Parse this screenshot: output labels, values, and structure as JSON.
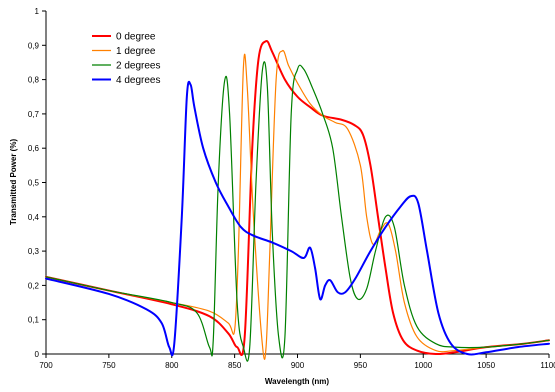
{
  "chart_data": {
    "type": "line",
    "title": "",
    "xlabel": "Wavelength (nm)",
    "ylabel": "Transmitted Power (%)",
    "xlim": [
      700,
      1100
    ],
    "ylim": [
      0,
      1
    ],
    "x_ticks": [
      700,
      750,
      800,
      850,
      900,
      950,
      1000,
      1050,
      1100
    ],
    "x_tick_labels": [
      "700",
      "750",
      "800",
      "850",
      "900",
      "950",
      "1000",
      "1050",
      "1100"
    ],
    "y_ticks": [
      0,
      0.1,
      0.2,
      0.3,
      0.4,
      0.5,
      0.6,
      0.7,
      0.8,
      0.9,
      1
    ],
    "y_tick_labels": [
      "0",
      "0,1",
      "0,2",
      "0,3",
      "0,4",
      "0,5",
      "0,6",
      "0,7",
      "0,8",
      "0,9",
      "1"
    ],
    "grid": false,
    "legend_position": "top-left",
    "series": [
      {
        "name": "0 degree",
        "color": "#ff0000",
        "width": 2,
        "points": [
          [
            700,
            0.225
          ],
          [
            750,
            0.185
          ],
          [
            800,
            0.145
          ],
          [
            830,
            0.11
          ],
          [
            845,
            0.06
          ],
          [
            852,
            0.02
          ],
          [
            858,
            0.05
          ],
          [
            864,
            0.6
          ],
          [
            869,
            0.86
          ],
          [
            875,
            0.912
          ],
          [
            880,
            0.88
          ],
          [
            890,
            0.8
          ],
          [
            900,
            0.75
          ],
          [
            910,
            0.72
          ],
          [
            920,
            0.695
          ],
          [
            935,
            0.683
          ],
          [
            945,
            0.668
          ],
          [
            952,
            0.64
          ],
          [
            958,
            0.55
          ],
          [
            964,
            0.4
          ],
          [
            970,
            0.25
          ],
          [
            976,
            0.12
          ],
          [
            984,
            0.04
          ],
          [
            995,
            0.01
          ],
          [
            1010,
            0.0
          ],
          [
            1025,
            0.005
          ],
          [
            1050,
            0.02
          ],
          [
            1080,
            0.03
          ],
          [
            1100,
            0.04
          ]
        ]
      },
      {
        "name": "1 degree",
        "color": "#ff8000",
        "width": 1.2,
        "points": [
          [
            700,
            0.225
          ],
          [
            750,
            0.185
          ],
          [
            800,
            0.15
          ],
          [
            830,
            0.125
          ],
          [
            845,
            0.09
          ],
          [
            850,
            0.07
          ],
          [
            853,
            0.3
          ],
          [
            857,
            0.837
          ],
          [
            860,
            0.78
          ],
          [
            865,
            0.4
          ],
          [
            872,
            0.03
          ],
          [
            875,
            0.02
          ],
          [
            878,
            0.3
          ],
          [
            883,
            0.8
          ],
          [
            888,
            0.884
          ],
          [
            893,
            0.84
          ],
          [
            900,
            0.79
          ],
          [
            910,
            0.73
          ],
          [
            920,
            0.695
          ],
          [
            930,
            0.675
          ],
          [
            940,
            0.655
          ],
          [
            950,
            0.55
          ],
          [
            955,
            0.4
          ],
          [
            960,
            0.32
          ],
          [
            966,
            0.36
          ],
          [
            972,
            0.38
          ],
          [
            978,
            0.3
          ],
          [
            985,
            0.15
          ],
          [
            995,
            0.05
          ],
          [
            1010,
            0.01
          ],
          [
            1025,
            0.01
          ],
          [
            1050,
            0.02
          ],
          [
            1080,
            0.03
          ],
          [
            1100,
            0.04
          ]
        ]
      },
      {
        "name": "2 degrees",
        "color": "#008000",
        "width": 1.2,
        "points": [
          [
            700,
            0.225
          ],
          [
            750,
            0.185
          ],
          [
            800,
            0.15
          ],
          [
            820,
            0.12
          ],
          [
            830,
            0.02
          ],
          [
            833,
            0.04
          ],
          [
            837,
            0.5
          ],
          [
            842,
            0.795
          ],
          [
            846,
            0.7
          ],
          [
            852,
            0.15
          ],
          [
            857,
            0.02
          ],
          [
            862,
            0.02
          ],
          [
            867,
            0.5
          ],
          [
            872,
            0.825
          ],
          [
            876,
            0.78
          ],
          [
            880,
            0.35
          ],
          [
            885,
            0.05
          ],
          [
            890,
            0.05
          ],
          [
            895,
            0.7
          ],
          [
            900,
            0.83
          ],
          [
            905,
            0.83
          ],
          [
            912,
            0.775
          ],
          [
            920,
            0.7
          ],
          [
            928,
            0.6
          ],
          [
            935,
            0.4
          ],
          [
            942,
            0.22
          ],
          [
            948,
            0.16
          ],
          [
            955,
            0.19
          ],
          [
            962,
            0.3
          ],
          [
            970,
            0.4
          ],
          [
            977,
            0.37
          ],
          [
            985,
            0.2
          ],
          [
            995,
            0.08
          ],
          [
            1010,
            0.03
          ],
          [
            1025,
            0.02
          ],
          [
            1050,
            0.02
          ],
          [
            1080,
            0.03
          ],
          [
            1100,
            0.04
          ]
        ]
      },
      {
        "name": "4 degrees",
        "color": "#0000ff",
        "width": 2,
        "points": [
          [
            700,
            0.22
          ],
          [
            750,
            0.175
          ],
          [
            780,
            0.13
          ],
          [
            792,
            0.09
          ],
          [
            798,
            0.02
          ],
          [
            802,
            0.03
          ],
          [
            808,
            0.4
          ],
          [
            812,
            0.75
          ],
          [
            815,
            0.785
          ],
          [
            818,
            0.72
          ],
          [
            825,
            0.6
          ],
          [
            835,
            0.5
          ],
          [
            845,
            0.43
          ],
          [
            855,
            0.37
          ],
          [
            865,
            0.345
          ],
          [
            880,
            0.325
          ],
          [
            895,
            0.3
          ],
          [
            905,
            0.28
          ],
          [
            910,
            0.31
          ],
          [
            914,
            0.25
          ],
          [
            918,
            0.16
          ],
          [
            922,
            0.2
          ],
          [
            926,
            0.215
          ],
          [
            932,
            0.18
          ],
          [
            938,
            0.18
          ],
          [
            946,
            0.22
          ],
          [
            958,
            0.3
          ],
          [
            970,
            0.37
          ],
          [
            982,
            0.43
          ],
          [
            990,
            0.46
          ],
          [
            996,
            0.44
          ],
          [
            1003,
            0.3
          ],
          [
            1012,
            0.12
          ],
          [
            1022,
            0.03
          ],
          [
            1035,
            0.0
          ],
          [
            1050,
            0.005
          ],
          [
            1075,
            0.02
          ],
          [
            1100,
            0.03
          ]
        ]
      }
    ]
  }
}
